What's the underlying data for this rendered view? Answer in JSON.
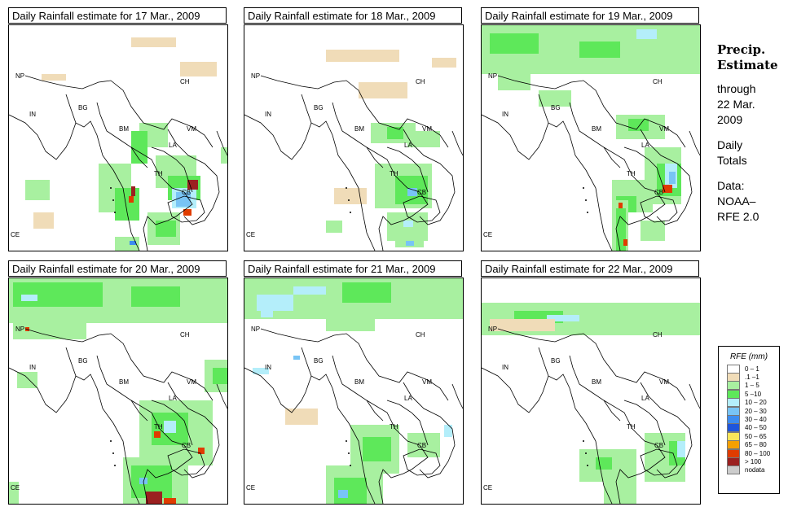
{
  "panels": [
    {
      "title": "Daily Rainfall estimate for  17 Mar., 2009"
    },
    {
      "title": "Daily Rainfall estimate for  18 Mar., 2009"
    },
    {
      "title": "Daily Rainfall estimate for  19 Mar., 2009"
    },
    {
      "title": "Daily Rainfall estimate for  20 Mar., 2009"
    },
    {
      "title": "Daily Rainfall estimate for  21 Mar., 2009"
    },
    {
      "title": "Daily Rainfall estimate for  22 Mar., 2009"
    }
  ],
  "map_labels": {
    "np": "NP",
    "ch": "CH",
    "in": "IN",
    "bg": "BG",
    "bm": "BM",
    "vm": "VM",
    "la": "LA",
    "th": "TH",
    "cb": "CB",
    "ce": "CE"
  },
  "side": {
    "head1": "Precip.",
    "head2": "Estimate",
    "through": "through",
    "date1": "22 Mar.",
    "date2": "2009",
    "daily": "Daily",
    "totals": "Totals",
    "data": "Data:",
    "noaa": "NOAA–",
    "rfe": "RFE 2.0"
  },
  "legend": {
    "title": "RFE (mm)",
    "items": [
      {
        "label": "0 – 1",
        "color": "#ffffff"
      },
      {
        "label": ".1 –1",
        "color": "#f0dcb8"
      },
      {
        "label": "1 – 5",
        "color": "#a8f0a0"
      },
      {
        "label": "5 –10",
        "color": "#5ee85a"
      },
      {
        "label": "10 – 20",
        "color": "#b4eefa"
      },
      {
        "label": "20 – 30",
        "color": "#78c4f5"
      },
      {
        "label": "30 – 40",
        "color": "#3c8cf0"
      },
      {
        "label": "40 – 50",
        "color": "#1e55dc"
      },
      {
        "label": "50 – 65",
        "color": "#fae65a"
      },
      {
        "label": "65 – 80",
        "color": "#f5a000"
      },
      {
        "label": "80 – 100",
        "color": "#e03c00"
      },
      {
        "label": "> 100",
        "color": "#9b2020"
      },
      {
        "label": "nodata",
        "color": "#cccccc"
      }
    ]
  }
}
